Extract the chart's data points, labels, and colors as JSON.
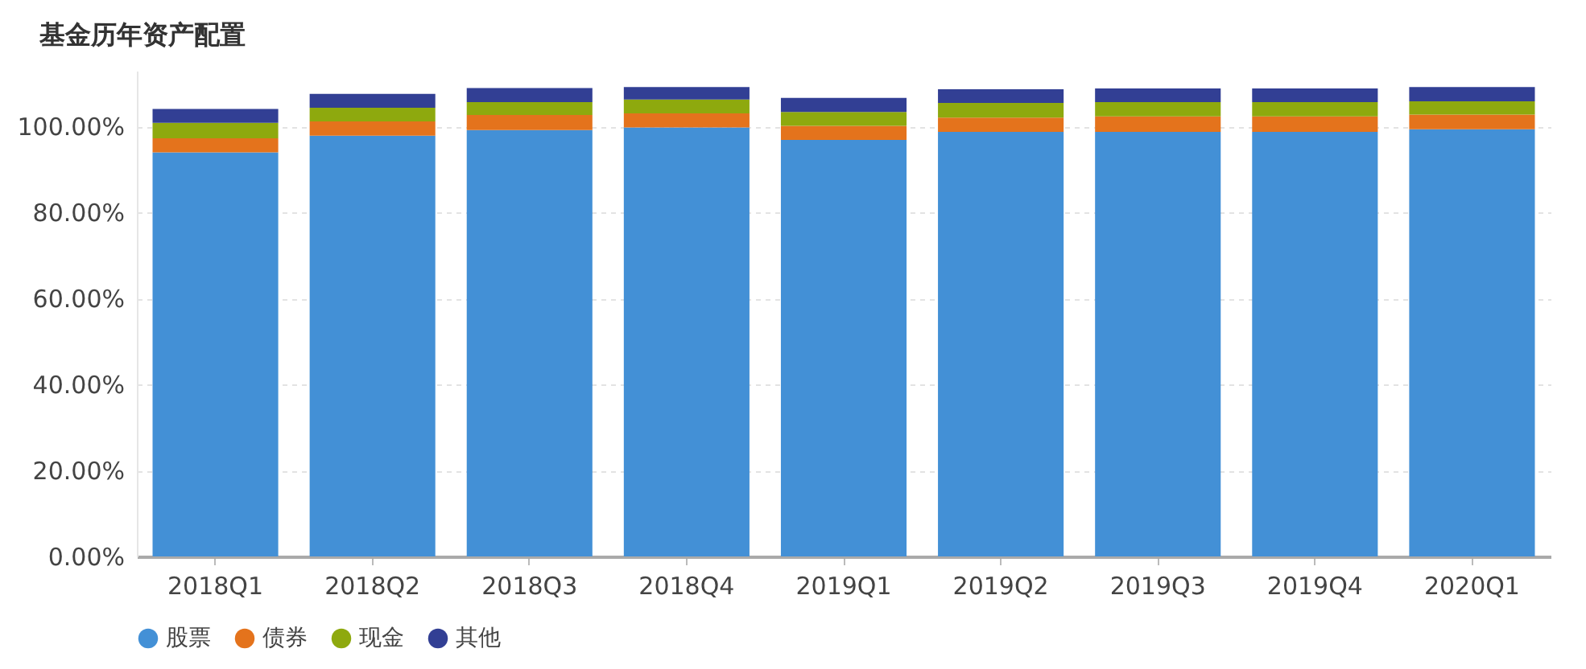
{
  "chart_data": {
    "type": "bar",
    "title": "基金历年资产配置",
    "stacked": true,
    "categories": [
      "2018Q1",
      "2018Q2",
      "2018Q3",
      "2018Q4",
      "2019Q1",
      "2019Q2",
      "2019Q3",
      "2019Q4",
      "2020Q1"
    ],
    "series": [
      {
        "name": "股票",
        "color": "#4390d6",
        "values": [
          94.0,
          97.9,
          99.2,
          99.8,
          96.9,
          98.8,
          98.8,
          98.8,
          99.4
        ]
      },
      {
        "name": "债券",
        "color": "#e4731c",
        "values": [
          3.3,
          3.3,
          3.5,
          3.3,
          3.3,
          3.3,
          3.6,
          3.6,
          3.4
        ]
      },
      {
        "name": "现金",
        "color": "#8ea90e",
        "values": [
          3.6,
          3.2,
          3.0,
          3.2,
          3.2,
          3.4,
          3.3,
          3.3,
          3.1
        ]
      },
      {
        "name": "其他",
        "color": "#323f94",
        "values": [
          3.2,
          3.2,
          3.3,
          2.9,
          3.3,
          3.2,
          3.2,
          3.2,
          3.3
        ]
      }
    ],
    "ylim": [
      0,
      113
    ],
    "yticks": [
      {
        "value": 0,
        "label": "0.00%"
      },
      {
        "value": 20,
        "label": "20.00%"
      },
      {
        "value": 40,
        "label": "40.00%"
      },
      {
        "value": 60,
        "label": "60.00%"
      },
      {
        "value": 80,
        "label": "80.00%"
      },
      {
        "value": 100,
        "label": "100.00%"
      }
    ],
    "grid": "y",
    "legend": "bottom"
  }
}
